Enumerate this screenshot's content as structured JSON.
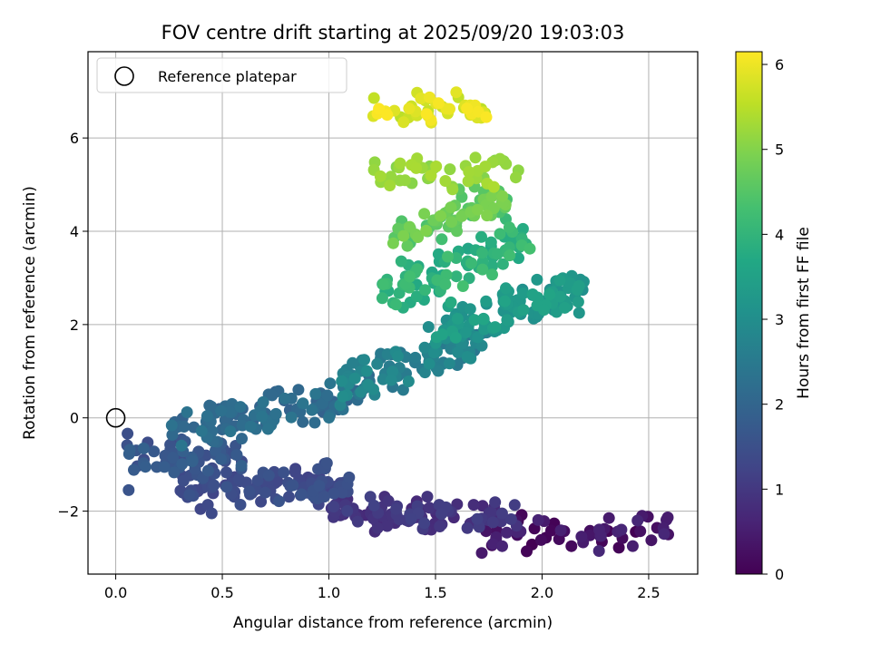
{
  "chart_data": {
    "type": "scatter",
    "title": "FOV centre drift starting at 2025/09/20 19:03:03",
    "xlabel": "Angular distance from reference (arcmin)",
    "ylabel": "Rotation from reference (arcmin)",
    "xlim": [
      -0.13,
      2.73
    ],
    "ylim": [
      -3.35,
      7.85
    ],
    "xticks": [
      "0.0",
      "0.5",
      "1.0",
      "1.5",
      "2.0",
      "2.5"
    ],
    "xtick_values": [
      0,
      0.5,
      1.0,
      1.5,
      2.0,
      2.5
    ],
    "yticks": [
      "−2",
      "0",
      "2",
      "4",
      "6"
    ],
    "ytick_values": [
      -2,
      0,
      2,
      4,
      6
    ],
    "grid": true,
    "legend": {
      "placement": "upper-left",
      "entries": [
        "Reference platepar"
      ]
    },
    "reference_point": {
      "x": 0,
      "y": 0
    },
    "colorbar": {
      "label": "Hours from first FF file",
      "colormap": "viridis",
      "range": [
        0,
        6.15
      ],
      "ticks": [
        "0",
        "1",
        "2",
        "3",
        "4",
        "5",
        "6"
      ],
      "tick_values": [
        0,
        1,
        2,
        3,
        4,
        5,
        6
      ]
    },
    "clusters": [
      {
        "hours": [
          0.0,
          0.7
        ],
        "x_range": [
          1.7,
          2.6
        ],
        "y_center": -2.4,
        "y_spread": 0.35,
        "count": 60
      },
      {
        "hours": [
          0.7,
          1.2
        ],
        "x_range": [
          1.0,
          1.9
        ],
        "y_center": -2.05,
        "y_spread": 0.3,
        "count": 90
      },
      {
        "hours": [
          1.2,
          1.6
        ],
        "x_range": [
          0.3,
          1.1
        ],
        "y_center": -1.5,
        "y_spread": 0.35,
        "count": 110
      },
      {
        "hours": [
          1.4,
          1.9
        ],
        "x_range": [
          0.05,
          0.6
        ],
        "y_center": -0.9,
        "y_spread": 0.4,
        "count": 70
      },
      {
        "hours": [
          1.9,
          2.4
        ],
        "x_range": [
          0.25,
          1.2
        ],
        "y_center_start": -0.3,
        "y_center_end": 0.6,
        "y_spread": 0.35,
        "count": 110
      },
      {
        "hours": [
          2.4,
          3.0
        ],
        "x_range": [
          1.05,
          1.75
        ],
        "y_center_start": 0.7,
        "y_center_end": 1.7,
        "y_spread": 0.4,
        "count": 100
      },
      {
        "hours": [
          3.0,
          3.6
        ],
        "x_range": [
          1.5,
          2.2
        ],
        "y_center_start": 1.9,
        "y_center_end": 2.8,
        "y_spread": 0.45,
        "count": 110
      },
      {
        "hours": [
          3.6,
          4.3
        ],
        "x_range": [
          1.25,
          1.95
        ],
        "y_center_start": 2.6,
        "y_center_end": 3.9,
        "y_spread": 0.45,
        "count": 90
      },
      {
        "hours": [
          4.3,
          5.0
        ],
        "x_range": [
          1.3,
          1.85
        ],
        "y_center_start": 3.9,
        "y_center_end": 4.8,
        "y_spread": 0.35,
        "count": 70
      },
      {
        "hours": [
          5.0,
          5.4
        ],
        "x_range": [
          1.2,
          1.92
        ],
        "y_center": 5.3,
        "y_spread": 0.35,
        "count": 45
      },
      {
        "hours": [
          5.5,
          6.15
        ],
        "x_range": [
          1.2,
          1.75
        ],
        "y_center": 6.6,
        "y_spread": 0.3,
        "count": 50
      }
    ]
  }
}
